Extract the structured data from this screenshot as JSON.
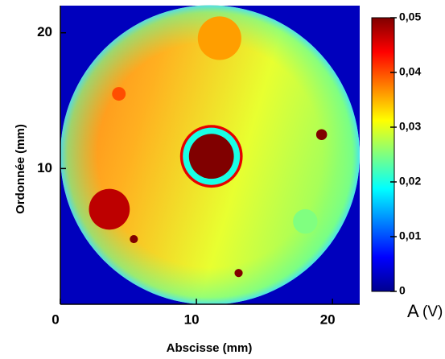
{
  "chart_data": {
    "type": "heatmap",
    "x_label": "Abscisse (mm)",
    "y_label": "Ordonnée (mm)",
    "colorbar_label": "A",
    "colorbar_unit": "(V)",
    "xlim": [
      0,
      22
    ],
    "ylim": [
      0,
      22
    ],
    "xticks": [
      0,
      10,
      20
    ],
    "yticks": [
      10,
      20
    ],
    "clim": [
      0,
      0.05
    ],
    "cticks": [
      0,
      {
        "value": 0.01,
        "label": "0,01"
      },
      {
        "value": 0.02,
        "label": "0,02"
      },
      {
        "value": 0.03,
        "label": "0,03"
      },
      {
        "value": 0.04,
        "label": "0,04"
      },
      {
        "value": 0.05,
        "label": "0,05"
      }
    ],
    "colormap": "jet",
    "background_value": 0.003,
    "disc": {
      "x": 11,
      "y": 11,
      "r": 11
    },
    "spots": [
      {
        "x": 11.1,
        "y": 10.9,
        "r": 2.3,
        "value": 0.045
      },
      {
        "x": 11.1,
        "y": 10.9,
        "r": 2.1,
        "value": 0.02
      },
      {
        "x": 11.1,
        "y": 10.9,
        "r": 1.65,
        "value": 0.05
      },
      {
        "x": 3.6,
        "y": 7.0,
        "r": 1.5,
        "value": 0.047
      },
      {
        "x": 11.7,
        "y": 19.6,
        "r": 1.6,
        "value": 0.036
      },
      {
        "x": 18.0,
        "y": 6.1,
        "r": 0.9,
        "value": 0.025
      },
      {
        "x": 4.3,
        "y": 15.5,
        "r": 0.5,
        "value": 0.04
      },
      {
        "x": 19.2,
        "y": 12.5,
        "r": 0.4,
        "value": 0.05
      },
      {
        "x": 13.1,
        "y": 2.3,
        "r": 0.3,
        "value": 0.05
      },
      {
        "x": 5.4,
        "y": 4.8,
        "r": 0.3,
        "value": 0.05
      }
    ]
  }
}
